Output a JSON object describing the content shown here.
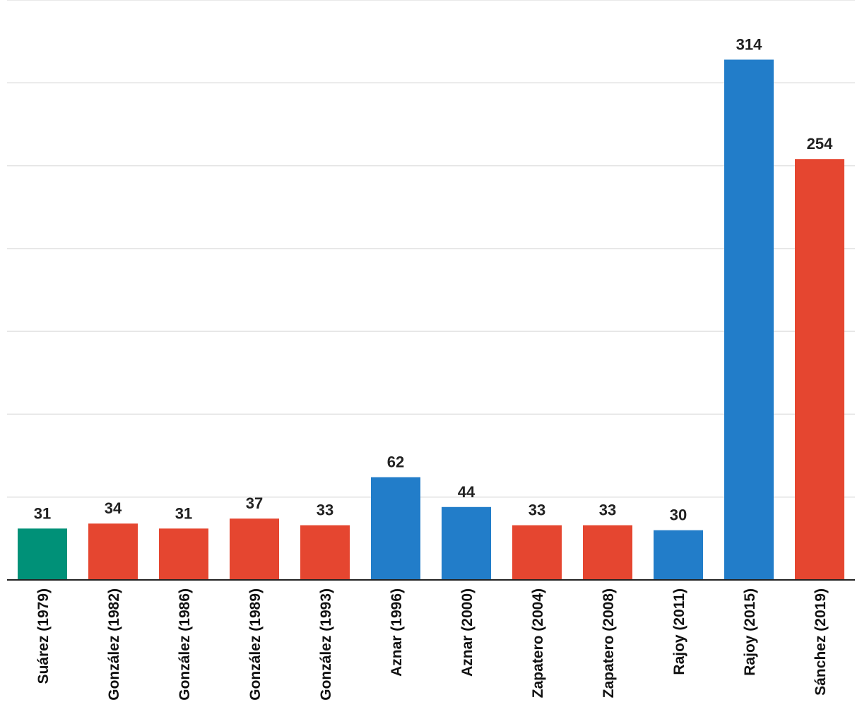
{
  "chart_data": {
    "type": "bar",
    "title": "",
    "xlabel": "",
    "ylabel": "",
    "ylim": [
      0,
      350
    ],
    "grid": true,
    "categories": [
      "Suárez (1979)",
      "González (1982)",
      "González (1986)",
      "González (1989)",
      "González (1993)",
      "Aznar (1996)",
      "Aznar (2000)",
      "Zapatero (2004)",
      "Zapatero (2008)",
      "Rajoy (2011)",
      "Rajoy (2015)",
      "Sánchez (2019)"
    ],
    "values": [
      31,
      34,
      31,
      37,
      33,
      62,
      44,
      33,
      33,
      30,
      314,
      254
    ],
    "value_labels": [
      "31",
      "34",
      "31",
      "37",
      "33",
      "62",
      "44",
      "33",
      "33",
      "30",
      "314",
      "254"
    ],
    "bar_colors": [
      "#009178",
      "#e54630",
      "#e54630",
      "#e54630",
      "#e54630",
      "#227dc9",
      "#227dc9",
      "#e54630",
      "#e54630",
      "#227dc9",
      "#227dc9",
      "#e54630"
    ],
    "colors": {
      "green": "#009178",
      "red": "#e54630",
      "blue": "#227dc9",
      "gridline": "#e2e2e2",
      "axis": "#222222"
    }
  }
}
